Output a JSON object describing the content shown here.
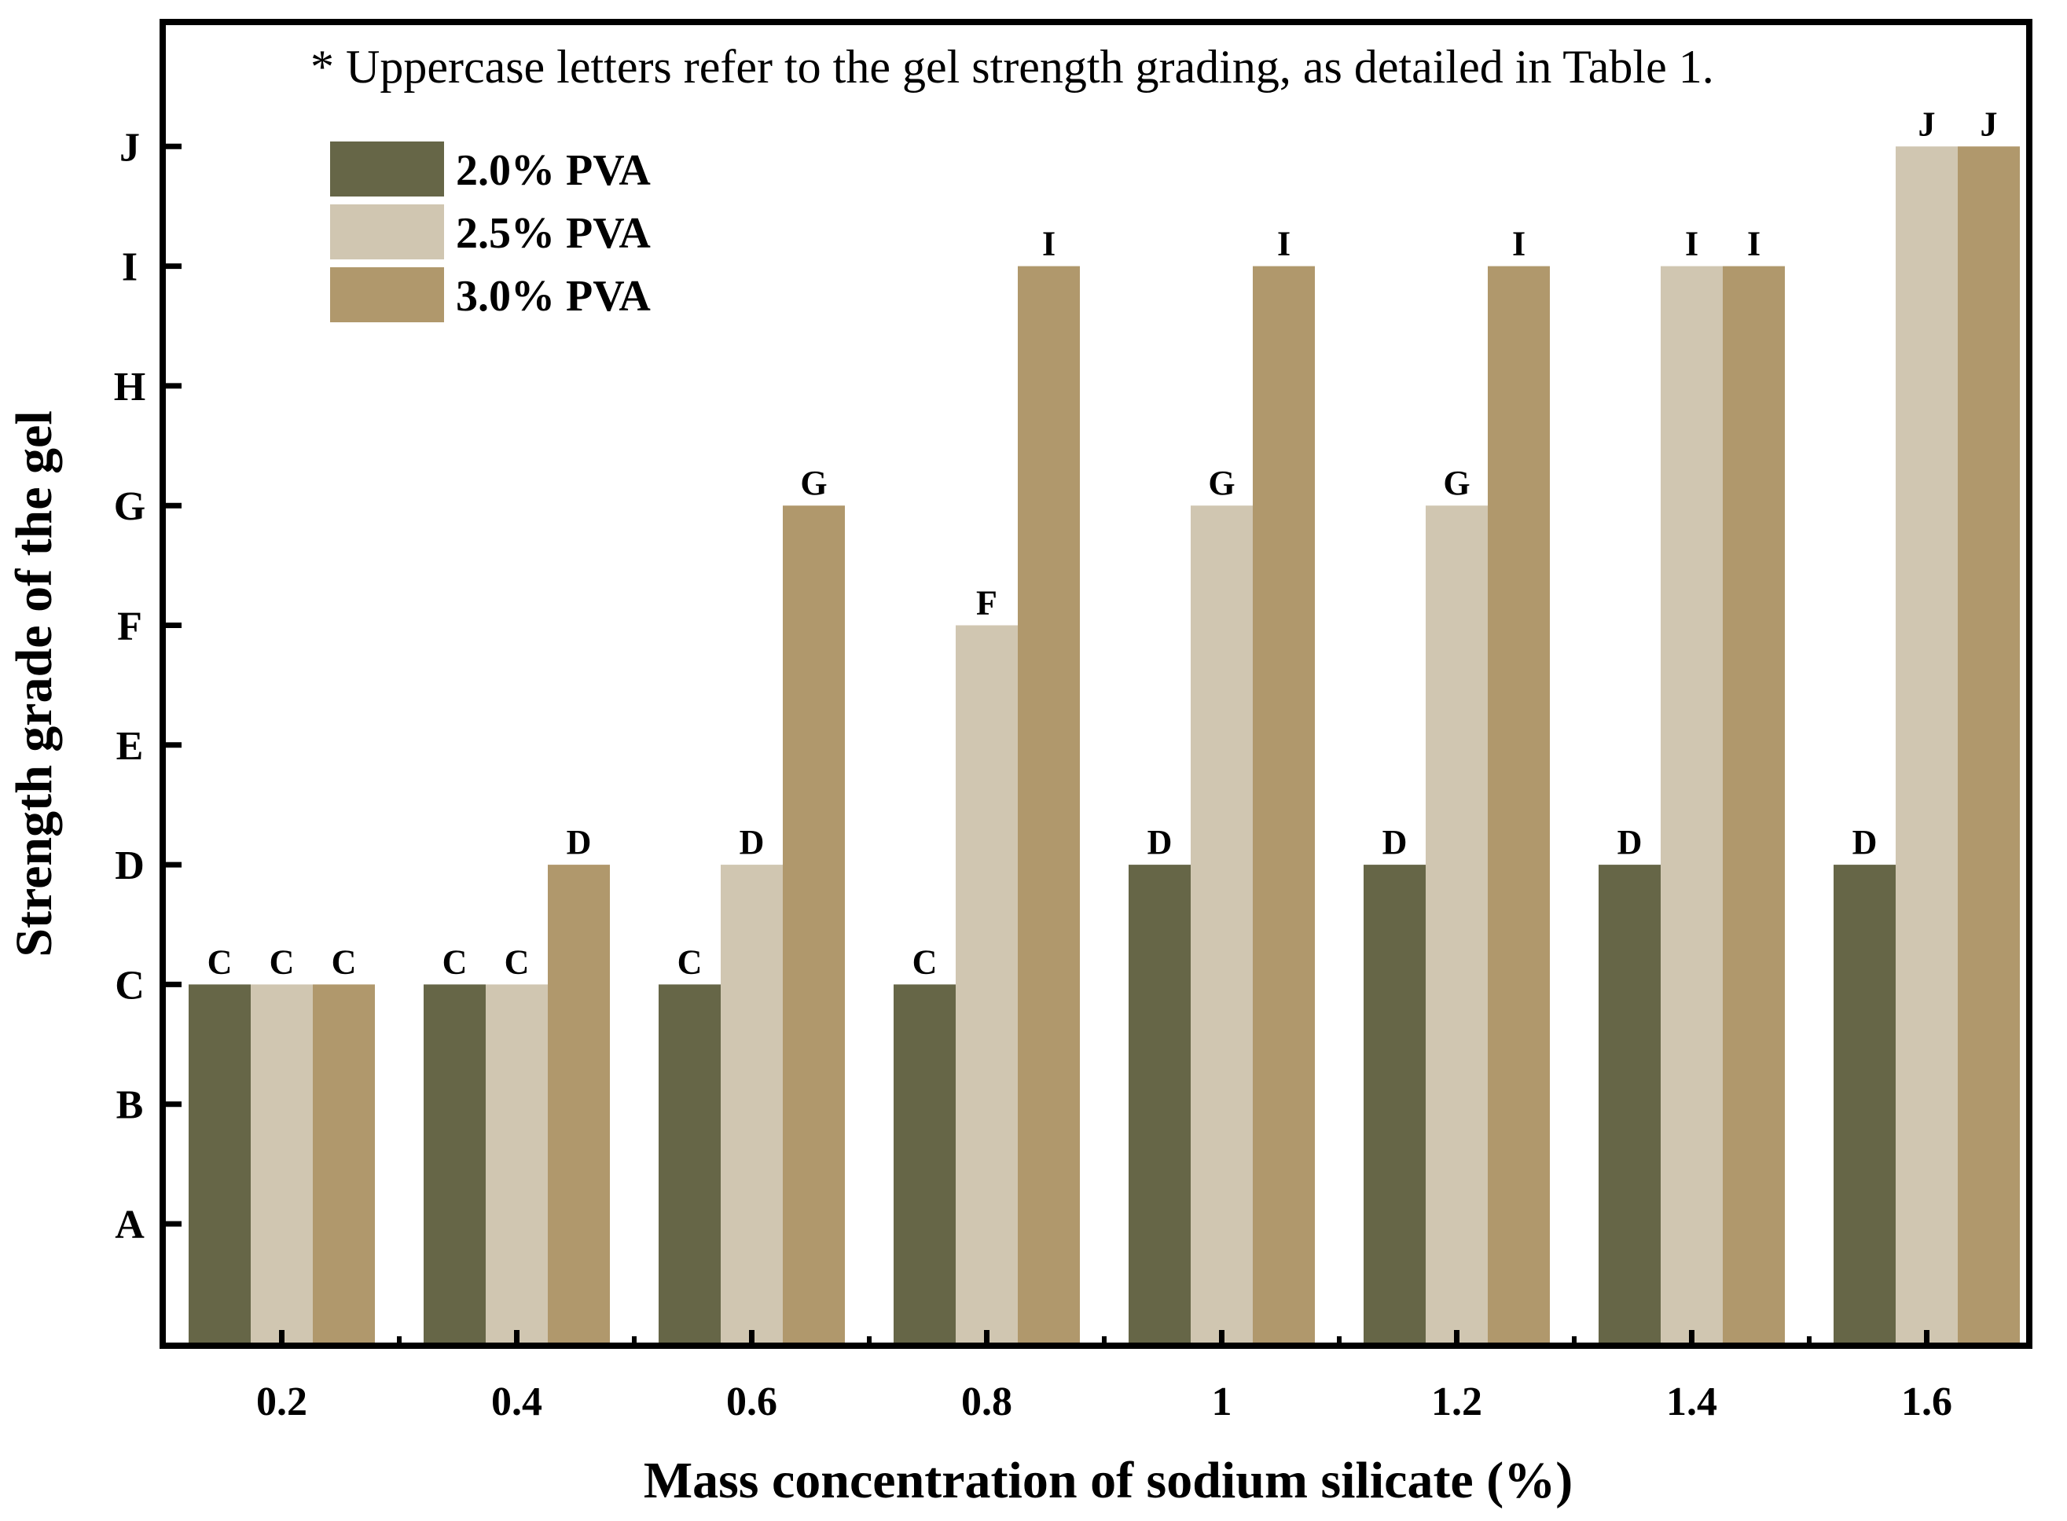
{
  "chart_data": {
    "type": "bar",
    "annotation": "* Uppercase letters refer to the gel strength grading, as detailed in Table 1.",
    "xlabel": "Mass concentration of sodium silicate (%)",
    "ylabel": "Strength grade of the gel",
    "categories": [
      "0.2",
      "0.4",
      "0.6",
      "0.8",
      "1",
      "1.2",
      "1.4",
      "1.6"
    ],
    "y_ticks": [
      "A",
      "B",
      "C",
      "D",
      "E",
      "F",
      "G",
      "H",
      "I",
      "J"
    ],
    "ylim": [
      "A",
      "J"
    ],
    "series": [
      {
        "name": "2.0% PVA",
        "color": "#666647",
        "values": [
          "C",
          "C",
          "C",
          "C",
          "D",
          "D",
          "D",
          "D"
        ]
      },
      {
        "name": "2.5% PVA",
        "color": "#d0c6b1",
        "values": [
          "C",
          "C",
          "D",
          "F",
          "G",
          "G",
          "I",
          "J"
        ]
      },
      {
        "name": "3.0% PVA",
        "color": "#b0986c",
        "values": [
          "C",
          "D",
          "G",
          "I",
          "I",
          "I",
          "I",
          "J"
        ]
      }
    ],
    "legend_position": "top-left",
    "grid": false
  }
}
